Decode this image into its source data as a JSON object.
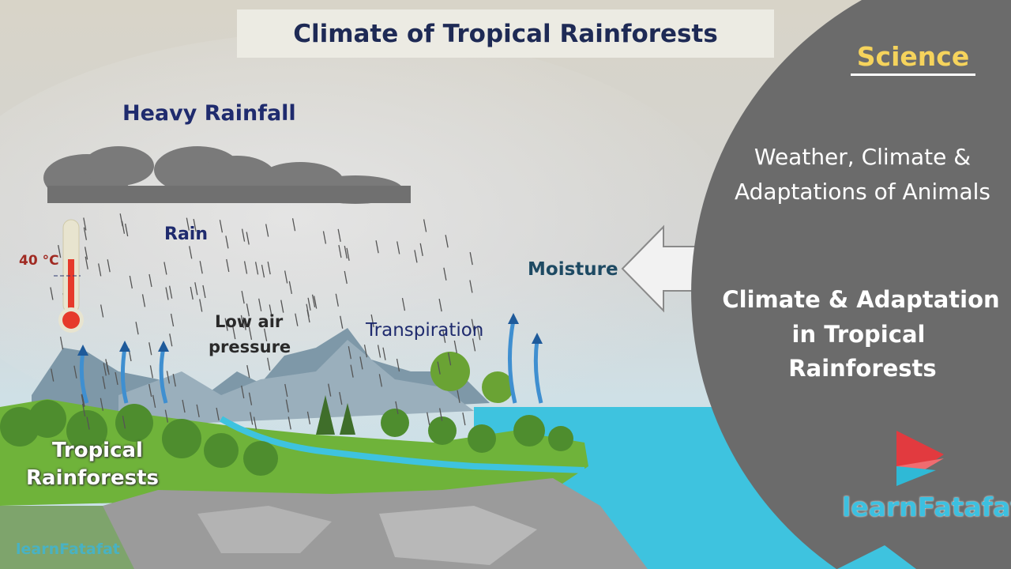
{
  "title": "Climate of Tropical Rainforests",
  "labels": {
    "heavy_rainfall": "Heavy Rainfall",
    "rain": "Rain",
    "temperature": "40 °C",
    "low_air_pressure_1": "Low air",
    "low_air_pressure_2": "pressure",
    "transpiration": "Transpiration",
    "moisture": "Moisture",
    "tropical_1": "Tropical",
    "tropical_2": "Rainforests"
  },
  "panel": {
    "subject": "Science",
    "chapter_1": "Weather, Climate &",
    "chapter_2": "Adaptations of Animals",
    "topic_1": "Climate & Adaptation",
    "topic_2": "in Tropical",
    "topic_3": "Rainforests"
  },
  "brand": {
    "logo_text": "learnFatafat",
    "watermark": "learnFatafat"
  },
  "colors": {
    "panel": "#6b6b6b",
    "subject": "#f5d35c",
    "sea": "#3ec3df",
    "title_text": "#1e2a55"
  }
}
